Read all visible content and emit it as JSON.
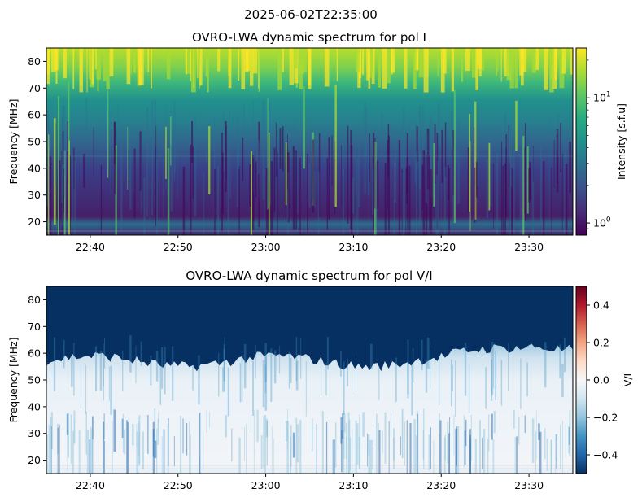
{
  "suptitle": "2025-06-02T22:35:00",
  "colors": {
    "viridis": [
      "#440154",
      "#472c7a",
      "#3b518b",
      "#2c718e",
      "#21908d",
      "#27ad81",
      "#5cc863",
      "#aadc32",
      "#fde725"
    ],
    "rdbu": [
      "#053061",
      "#2166ac",
      "#4393c3",
      "#92c5de",
      "#d1e5f0",
      "#f7f7f7",
      "#fddbc7",
      "#f4a582",
      "#d6604d",
      "#b2182b",
      "#67001f"
    ]
  },
  "chart_data": [
    {
      "type": "heatmap",
      "title": "OVRO-LWA dynamic spectrum for pol I",
      "xlabel": "",
      "ylabel": "Frequency [MHz]",
      "x_start": "22:35",
      "x_end": "23:35",
      "xticks": [
        "22:40",
        "22:50",
        "23:00",
        "23:10",
        "23:20",
        "23:30"
      ],
      "xlim_minutes": [
        0,
        60
      ],
      "ylim": [
        15,
        85
      ],
      "yticks": [
        20,
        30,
        40,
        50,
        60,
        70,
        80
      ],
      "colorbar": {
        "label": "Intensity [s.f.u]",
        "scale": "log",
        "range": [
          0.8,
          25
        ],
        "ticks": [
          "10^0",
          "10^1"
        ],
        "tick_values": [
          1,
          10
        ],
        "colormap": "viridis"
      }
    },
    {
      "type": "heatmap",
      "title": "OVRO-LWA dynamic spectrum for pol V/I",
      "xlabel": "",
      "ylabel": "Frequency [MHz]",
      "x_start": "22:35",
      "x_end": "23:35",
      "xticks": [
        "22:40",
        "22:50",
        "23:00",
        "23:10",
        "23:20",
        "23:30"
      ],
      "xlim_minutes": [
        0,
        60
      ],
      "ylim": [
        15,
        85
      ],
      "yticks": [
        20,
        30,
        40,
        50,
        60,
        70,
        80
      ],
      "colorbar": {
        "label": "V/I",
        "scale": "linear",
        "range": [
          -0.5,
          0.5
        ],
        "ticks": [
          "0.4",
          "0.2",
          "0.0",
          "−0.2",
          "−0.4"
        ],
        "tick_values": [
          0.4,
          0.2,
          0.0,
          -0.2,
          -0.4
        ],
        "colormap": "RdBu_r"
      }
    }
  ]
}
